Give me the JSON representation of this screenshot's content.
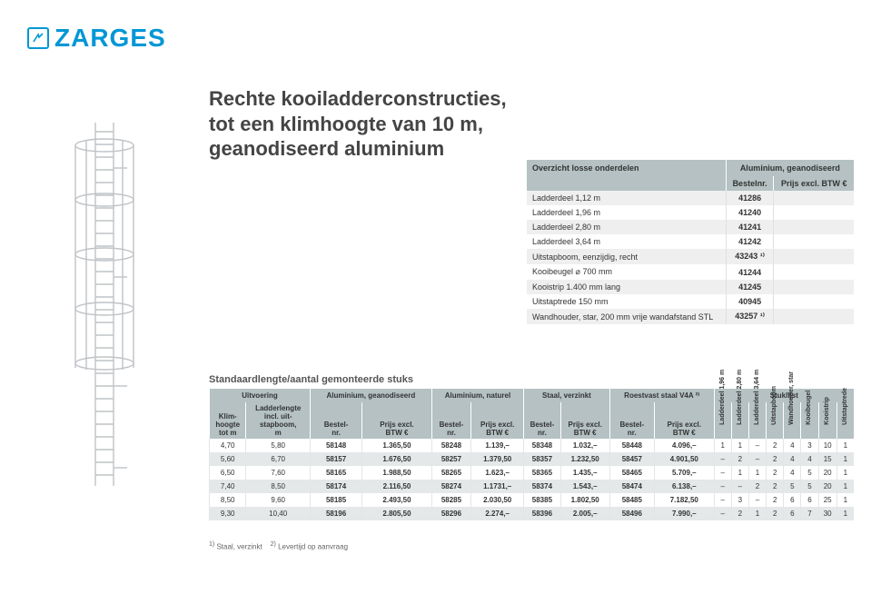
{
  "brand": {
    "name": "ZARGES",
    "color": "#0097D6"
  },
  "title": "Rechte kooiladderconstructies, tot een klimhoogte van 10 m, geanodiseerd aluminium",
  "partsTable": {
    "header": {
      "left": "Overzicht losse onderdelen",
      "right": "Aluminium, geanodiseerd",
      "subLeft": "",
      "subOrder": "Bestelnr.",
      "subPrice": "Prijs excl. BTW €"
    },
    "rows": [
      {
        "desc": "Ladderdeel 1,12 m",
        "nr": "41286",
        "price": ""
      },
      {
        "desc": "Ladderdeel 1,96 m",
        "nr": "41240",
        "price": ""
      },
      {
        "desc": "Ladderdeel 2,80 m",
        "nr": "41241",
        "price": ""
      },
      {
        "desc": "Ladderdeel 3,64 m",
        "nr": "41242",
        "price": ""
      },
      {
        "desc": "Uitstapboom, eenzijdig, recht",
        "nr": "43243 ¹⁾",
        "price": ""
      },
      {
        "desc": "Kooibeugel ⌀ 700 mm",
        "nr": "41244",
        "price": ""
      },
      {
        "desc": "Kooistrip 1.400 mm lang",
        "nr": "41245",
        "price": ""
      },
      {
        "desc": "Uitstaptrede 150 mm",
        "nr": "40945",
        "price": ""
      },
      {
        "desc": "Wandhouder, star, 200 mm vrije wandafstand STL",
        "nr": "43257 ¹⁾",
        "price": ""
      }
    ]
  },
  "mainTable": {
    "caption": "Standaardlengte/aantal gemonteerde stuks",
    "groupHeaders": [
      "Uitvoering",
      "Aluminium, geanodiseerd",
      "Aluminium, naturel",
      "Staal, verzinkt",
      "Roestvast staal V4A ²⁾",
      "Stuklijst"
    ],
    "subHeaders": [
      "Klim-\nhoogte\ntot m",
      "Ladderlengte\nincl. uit-\nstapboom,\nm",
      "Bestel-\nnr.",
      "Prijs excl.\nBTW €",
      "Bestel-\nnr.",
      "Prijs excl.\nBTW €",
      "Bestel-\nnr.",
      "Prijs excl.\nBTW €",
      "Bestel-\nnr.",
      "Prijs excl.\nBTW €",
      "Ladderdeel 1,96 m",
      "Ladderdeel 2,80 m",
      "Ladderdeel 3,64 m",
      "Uitstapboom",
      "Wandhouder, star",
      "Kooibeugel",
      "Kooistrip",
      "Uitstaptrede"
    ],
    "rows": [
      [
        "4,70",
        "5,80",
        "58148",
        "1.365,50",
        "58248",
        "1.139,–",
        "58348",
        "1.032,–",
        "58448",
        "4.096,–",
        "1",
        "1",
        "–",
        "2",
        "4",
        "3",
        "10",
        "1"
      ],
      [
        "5,60",
        "6,70",
        "58157",
        "1.676,50",
        "58257",
        "1.379,50",
        "58357",
        "1.232,50",
        "58457",
        "4.901,50",
        "–",
        "2",
        "–",
        "2",
        "4",
        "4",
        "15",
        "1"
      ],
      [
        "6,50",
        "7,60",
        "58165",
        "1.988,50",
        "58265",
        "1.623,–",
        "58365",
        "1.435,–",
        "58465",
        "5.709,–",
        "–",
        "1",
        "1",
        "2",
        "4",
        "5",
        "20",
        "1"
      ],
      [
        "7,40",
        "8,50",
        "58174",
        "2.116,50",
        "58274",
        "1.1731,–",
        "58374",
        "1.543,–",
        "58474",
        "6.138,–",
        "–",
        "–",
        "2",
        "2",
        "5",
        "5",
        "20",
        "1"
      ],
      [
        "8,50",
        "9,60",
        "58185",
        "2.493,50",
        "58285",
        "2.030,50",
        "58385",
        "1.802,50",
        "58485",
        "7.182,50",
        "–",
        "3",
        "–",
        "2",
        "6",
        "6",
        "25",
        "1"
      ],
      [
        "9,30",
        "10,40",
        "58196",
        "2.805,50",
        "58296",
        "2.274,–",
        "58396",
        "2.005,–",
        "58496",
        "7.990,–",
        "–",
        "2",
        "1",
        "2",
        "6",
        "7",
        "30",
        "1"
      ]
    ]
  },
  "footnotes": {
    "n1": "Staal, verzinkt",
    "n2": "Levertijd op aanvraag"
  },
  "colors": {
    "headerBg": "#b5c1c3",
    "rowAlt": "#e4e8e9",
    "textDark": "#444"
  }
}
